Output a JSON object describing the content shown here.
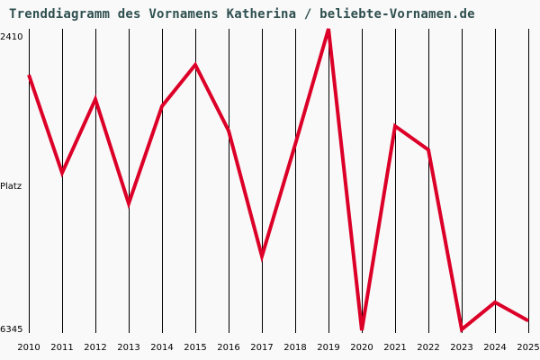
{
  "chart_data": {
    "type": "line",
    "title": "Trenddiagramm des Vornamens Katherina / beliebte-Vornamen.de",
    "xlabel": "",
    "ylabel": "Platz",
    "y_axis_inverted": true,
    "ylim": [
      2410,
      6345
    ],
    "y_tick_labels": [
      "2410",
      "Platz",
      "6345"
    ],
    "grid": "vertical lines at each year",
    "legend": null,
    "categories": [
      "2010",
      "2011",
      "2012",
      "2013",
      "2014",
      "2015",
      "2016",
      "2017",
      "2018",
      "2019",
      "2020",
      "2021",
      "2022",
      "2023",
      "2024",
      "2025"
    ],
    "series": [
      {
        "name": "Katherina",
        "color": "#dc0028",
        "values": [
          3010,
          4290,
          3330,
          4690,
          3420,
          2880,
          3740,
          5380,
          3920,
          2410,
          6345,
          3680,
          3990,
          6335,
          5980,
          6220
        ]
      }
    ]
  },
  "colors": {
    "line": "#dc0028",
    "title": "#2f4f4f",
    "grid": "#000000",
    "background": "#f9f9f9"
  }
}
